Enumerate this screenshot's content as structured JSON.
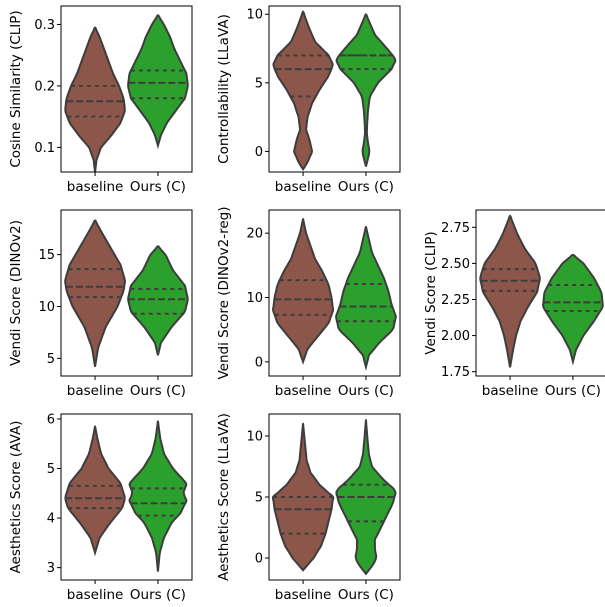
{
  "colors": {
    "baseline": "#8c564b",
    "ours": "#2ca02c",
    "edge": "#3d3d3d"
  },
  "chart_data": [
    {
      "type": "violin",
      "ylabel": "Cosine Similarity (CLIP)",
      "categories": [
        "baseline",
        "Ours (C)"
      ],
      "ylim": [
        0.06,
        0.33
      ],
      "yticks": [
        0.1,
        0.2,
        0.3
      ],
      "ytick_labels": [
        "0.1",
        "0.2",
        "0.3"
      ],
      "series": [
        {
          "quartiles": [
            0.15,
            0.175,
            0.2
          ],
          "profile": [
            [
              0.06,
              0.0
            ],
            [
              0.08,
              0.05
            ],
            [
              0.1,
              0.2
            ],
            [
              0.12,
              0.55
            ],
            [
              0.14,
              0.85
            ],
            [
              0.16,
              1.0
            ],
            [
              0.18,
              0.95
            ],
            [
              0.2,
              0.8
            ],
            [
              0.22,
              0.6
            ],
            [
              0.24,
              0.45
            ],
            [
              0.26,
              0.3
            ],
            [
              0.28,
              0.15
            ],
            [
              0.295,
              0.0
            ]
          ]
        },
        {
          "quartiles": [
            0.18,
            0.205,
            0.225
          ],
          "profile": [
            [
              0.103,
              0.0
            ],
            [
              0.12,
              0.1
            ],
            [
              0.14,
              0.3
            ],
            [
              0.16,
              0.6
            ],
            [
              0.18,
              0.9
            ],
            [
              0.2,
              1.0
            ],
            [
              0.22,
              0.95
            ],
            [
              0.24,
              0.75
            ],
            [
              0.26,
              0.55
            ],
            [
              0.28,
              0.4
            ],
            [
              0.3,
              0.2
            ],
            [
              0.315,
              0.0
            ]
          ]
        }
      ]
    },
    {
      "type": "violin",
      "ylabel": "Controllability (LLaVA)",
      "categories": [
        "baseline",
        "Ours (C)"
      ],
      "ylim": [
        -1.5,
        10.6
      ],
      "yticks": [
        0,
        5,
        10
      ],
      "ytick_labels": [
        "0",
        "5",
        "10"
      ],
      "series": [
        {
          "quartiles": [
            4,
            6,
            7
          ],
          "profile": [
            [
              -1.3,
              0.0
            ],
            [
              -0.8,
              0.15
            ],
            [
              0,
              0.3
            ],
            [
              0.8,
              0.22
            ],
            [
              1.6,
              0.1
            ],
            [
              2.5,
              0.15
            ],
            [
              3.5,
              0.3
            ],
            [
              4.5,
              0.55
            ],
            [
              5.5,
              0.85
            ],
            [
              6.3,
              1.0
            ],
            [
              7,
              0.85
            ],
            [
              8,
              0.4
            ],
            [
              9,
              0.2
            ],
            [
              10.2,
              0.0
            ]
          ]
        },
        {
          "quartiles": [
            6,
            7,
            7
          ],
          "profile": [
            [
              -1.1,
              0.0
            ],
            [
              -0.5,
              0.07
            ],
            [
              0,
              0.12
            ],
            [
              0.6,
              0.07
            ],
            [
              1.3,
              0.03
            ],
            [
              2,
              0.04
            ],
            [
              3,
              0.07
            ],
            [
              4,
              0.13
            ],
            [
              5,
              0.4
            ],
            [
              6,
              0.85
            ],
            [
              6.7,
              1.0
            ],
            [
              7.5,
              0.7
            ],
            [
              8.5,
              0.3
            ],
            [
              10,
              0.0
            ]
          ]
        }
      ]
    },
    {
      "type": "violin",
      "ylabel": "Vendi Score (DINOv2)",
      "categories": [
        "baseline",
        "Ours (C)"
      ],
      "ylim": [
        3.3,
        19.3
      ],
      "yticks": [
        5,
        10,
        15
      ],
      "ytick_labels": [
        "5",
        "10",
        "15"
      ],
      "series": [
        {
          "quartiles": [
            10.9,
            11.9,
            13.6
          ],
          "profile": [
            [
              4.2,
              0.0
            ],
            [
              6,
              0.1
            ],
            [
              8,
              0.35
            ],
            [
              10,
              0.75
            ],
            [
              11.5,
              0.95
            ],
            [
              12.5,
              1.0
            ],
            [
              14,
              0.85
            ],
            [
              15.5,
              0.55
            ],
            [
              17,
              0.25
            ],
            [
              18.3,
              0.0
            ]
          ]
        },
        {
          "quartiles": [
            9.3,
            10.7,
            11.7
          ],
          "profile": [
            [
              5.3,
              0.0
            ],
            [
              6.5,
              0.1
            ],
            [
              8,
              0.45
            ],
            [
              9.5,
              0.9
            ],
            [
              10.7,
              1.0
            ],
            [
              12,
              0.9
            ],
            [
              13.5,
              0.5
            ],
            [
              15,
              0.25
            ],
            [
              15.8,
              0.0
            ]
          ]
        }
      ]
    },
    {
      "type": "violin",
      "ylabel": "Vendi Score (DINOv2-reg)",
      "categories": [
        "baseline",
        "Ours (C)"
      ],
      "ylim": [
        -2.2,
        23.6
      ],
      "yticks": [
        0,
        10,
        20
      ],
      "ytick_labels": [
        "0",
        "10",
        "20"
      ],
      "series": [
        {
          "quartiles": [
            7.3,
            9.7,
            12.7
          ],
          "profile": [
            [
              0,
              0.0
            ],
            [
              2,
              0.15
            ],
            [
              4,
              0.5
            ],
            [
              6,
              0.85
            ],
            [
              8,
              1.0
            ],
            [
              10,
              0.95
            ],
            [
              12,
              0.85
            ],
            [
              14,
              0.65
            ],
            [
              16,
              0.4
            ],
            [
              18,
              0.25
            ],
            [
              20,
              0.1
            ],
            [
              22.2,
              0.0
            ]
          ]
        },
        {
          "quartiles": [
            6.3,
            8.6,
            12.1
          ],
          "profile": [
            [
              -0.8,
              0.0
            ],
            [
              1,
              0.1
            ],
            [
              3,
              0.45
            ],
            [
              5,
              0.9
            ],
            [
              7,
              1.0
            ],
            [
              9,
              0.85
            ],
            [
              11,
              0.75
            ],
            [
              13,
              0.6
            ],
            [
              15,
              0.4
            ],
            [
              17,
              0.2
            ],
            [
              19,
              0.1
            ],
            [
              21,
              0.0
            ]
          ]
        }
      ]
    },
    {
      "type": "violin",
      "ylabel": "Vendi Score (CLIP)",
      "categories": [
        "baseline",
        "Ours (C)"
      ],
      "ylim": [
        1.72,
        2.87
      ],
      "yticks": [
        1.75,
        2.0,
        2.25,
        2.5,
        2.75
      ],
      "ytick_labels": [
        "1.75",
        "2.00",
        "2.25",
        "2.50",
        "2.75"
      ],
      "series": [
        {
          "quartiles": [
            2.31,
            2.38,
            2.46
          ],
          "profile": [
            [
              1.78,
              0.0
            ],
            [
              1.9,
              0.1
            ],
            [
              2.0,
              0.2
            ],
            [
              2.1,
              0.35
            ],
            [
              2.2,
              0.6
            ],
            [
              2.3,
              0.9
            ],
            [
              2.4,
              1.0
            ],
            [
              2.5,
              0.85
            ],
            [
              2.6,
              0.5
            ],
            [
              2.7,
              0.25
            ],
            [
              2.83,
              0.0
            ]
          ]
        },
        {
          "quartiles": [
            2.17,
            2.23,
            2.35
          ],
          "profile": [
            [
              1.82,
              0.0
            ],
            [
              1.9,
              0.1
            ],
            [
              2.0,
              0.35
            ],
            [
              2.1,
              0.7
            ],
            [
              2.2,
              1.0
            ],
            [
              2.3,
              0.95
            ],
            [
              2.4,
              0.7
            ],
            [
              2.5,
              0.35
            ],
            [
              2.56,
              0.0
            ]
          ]
        }
      ]
    },
    {
      "type": "violin",
      "ylabel": "Aesthetics Score (AVA)",
      "categories": [
        "baseline",
        "Ours (C)"
      ],
      "ylim": [
        2.75,
        6.1
      ],
      "yticks": [
        3,
        4,
        5,
        6
      ],
      "ytick_labels": [
        "3",
        "4",
        "5",
        "6"
      ],
      "series": [
        {
          "quartiles": [
            4.2,
            4.4,
            4.65
          ],
          "profile": [
            [
              3.3,
              0.0
            ],
            [
              3.6,
              0.15
            ],
            [
              3.9,
              0.5
            ],
            [
              4.2,
              0.9
            ],
            [
              4.4,
              1.0
            ],
            [
              4.7,
              0.85
            ],
            [
              5.0,
              0.45
            ],
            [
              5.3,
              0.2
            ],
            [
              5.6,
              0.08
            ],
            [
              5.85,
              0.0
            ]
          ]
        },
        {
          "quartiles": [
            4.05,
            4.3,
            4.6
          ],
          "profile": [
            [
              2.92,
              0.0
            ],
            [
              3.3,
              0.06
            ],
            [
              3.6,
              0.2
            ],
            [
              3.9,
              0.45
            ],
            [
              4.1,
              0.75
            ],
            [
              4.35,
              0.95
            ],
            [
              4.5,
              0.85
            ],
            [
              4.7,
              0.95
            ],
            [
              5.0,
              0.5
            ],
            [
              5.3,
              0.2
            ],
            [
              5.6,
              0.08
            ],
            [
              5.95,
              0.0
            ]
          ]
        }
      ]
    },
    {
      "type": "violin",
      "ylabel": "Aesthetics Score (LLaVA)",
      "categories": [
        "baseline",
        "Ours (C)"
      ],
      "ylim": [
        -1.8,
        11.8
      ],
      "yticks": [
        0,
        5,
        10
      ],
      "ytick_labels": [
        "0",
        "5",
        "10"
      ],
      "series": [
        {
          "quartiles": [
            2,
            4,
            5
          ],
          "profile": [
            [
              -1,
              0.0
            ],
            [
              0,
              0.35
            ],
            [
              1,
              0.6
            ],
            [
              2,
              0.75
            ],
            [
              3,
              0.85
            ],
            [
              4,
              0.95
            ],
            [
              5,
              1.0
            ],
            [
              6,
              0.55
            ],
            [
              7,
              0.25
            ],
            [
              8,
              0.12
            ],
            [
              9,
              0.08
            ],
            [
              11,
              0.0
            ]
          ]
        },
        {
          "quartiles": [
            3,
            5,
            6
          ],
          "profile": [
            [
              -1.3,
              0.0
            ],
            [
              -0.5,
              0.25
            ],
            [
              0,
              0.35
            ],
            [
              0.7,
              0.3
            ],
            [
              1.5,
              0.3
            ],
            [
              2.5,
              0.5
            ],
            [
              3.5,
              0.7
            ],
            [
              4.5,
              0.9
            ],
            [
              5.5,
              1.0
            ],
            [
              6.5,
              0.55
            ],
            [
              7.5,
              0.2
            ],
            [
              8.5,
              0.1
            ],
            [
              9.5,
              0.06
            ],
            [
              11.3,
              0.0
            ]
          ]
        }
      ]
    }
  ]
}
